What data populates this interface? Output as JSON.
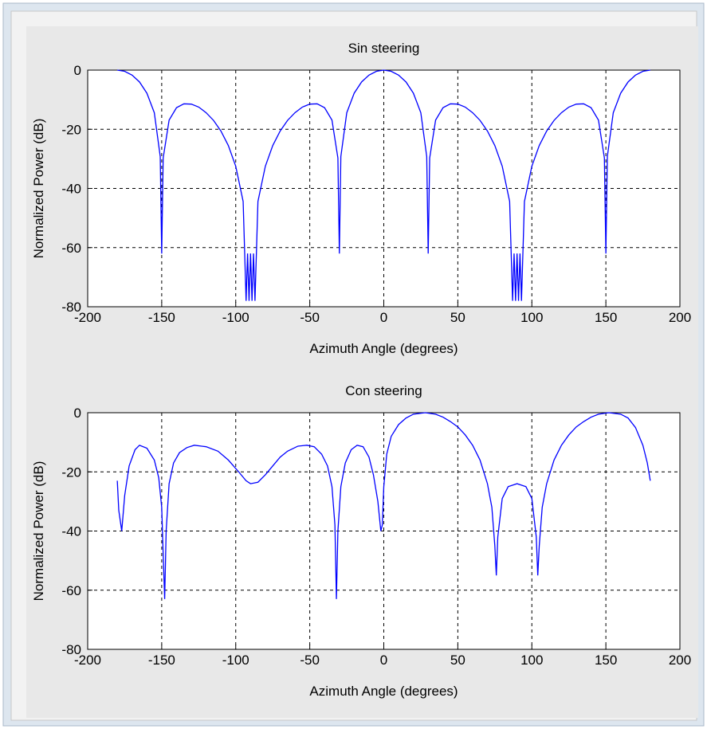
{
  "chart_data": [
    {
      "type": "line",
      "title": "Sin steering",
      "xlabel": "Azimuth Angle (degrees)",
      "ylabel": "Normalized Power (dB)",
      "xlim": [
        -200,
        200
      ],
      "xticks": [
        -200,
        -150,
        -100,
        -50,
        0,
        50,
        100,
        150,
        200
      ],
      "ylim": [
        -80,
        0
      ],
      "yticks": [
        -80,
        -60,
        -40,
        -20,
        0
      ],
      "grid": true,
      "x": [
        -180,
        -175,
        -170,
        -165,
        -160,
        -155,
        -151,
        -150,
        -149,
        -145,
        -140,
        -135,
        -130,
        -125,
        -120,
        -115,
        -110,
        -105,
        -100,
        -95,
        -93,
        -92,
        -91,
        -90,
        -89,
        -88,
        -87,
        -85,
        -80,
        -75,
        -70,
        -65,
        -60,
        -55,
        -50,
        -45,
        -40,
        -35,
        -31,
        -30,
        -29,
        -25,
        -20,
        -15,
        -10,
        -5,
        0,
        5,
        10,
        15,
        20,
        25,
        29,
        30,
        31,
        35,
        40,
        45,
        50,
        55,
        60,
        65,
        70,
        75,
        80,
        85,
        87,
        88,
        89,
        90,
        91,
        92,
        93,
        95,
        100,
        105,
        110,
        115,
        120,
        125,
        130,
        135,
        140,
        145,
        149,
        150,
        151,
        155,
        160,
        165,
        170,
        175,
        180
      ],
      "series": [
        {
          "color": "#0000ff",
          "values": [
            0,
            -0.4,
            -1.7,
            -4,
            -7.8,
            -14.4,
            -29.2,
            -62,
            -29.7,
            -16.9,
            -12.7,
            -11.4,
            -11.5,
            -12.5,
            -14.4,
            -17,
            -20.6,
            -25.5,
            -32.5,
            -44.4,
            -78,
            -62,
            -78,
            -62,
            -78,
            -62,
            -78,
            -44.4,
            -32.5,
            -25.5,
            -20.6,
            -17,
            -14.4,
            -12.5,
            -11.5,
            -11.4,
            -12.7,
            -16.9,
            -29.7,
            -62,
            -29.2,
            -14.4,
            -7.8,
            -4,
            -1.7,
            -0.4,
            0,
            -0.4,
            -1.7,
            -4,
            -7.8,
            -14.4,
            -29.2,
            -62,
            -29.7,
            -16.9,
            -12.7,
            -11.4,
            -11.5,
            -12.5,
            -14.4,
            -17,
            -20.6,
            -25.5,
            -32.5,
            -44.4,
            -78,
            -62,
            -78,
            -62,
            -78,
            -62,
            -78,
            -44.4,
            -32.5,
            -25.5,
            -20.6,
            -17,
            -14.4,
            -12.5,
            -11.5,
            -11.4,
            -12.7,
            -16.9,
            -29.7,
            -62,
            -29.2,
            -14.4,
            -7.8,
            -4,
            -1.7,
            -0.4,
            0
          ]
        }
      ]
    },
    {
      "type": "line",
      "title": "Con steering",
      "xlabel": "Azimuth Angle (degrees)",
      "ylabel": "Normalized Power (dB)",
      "xlim": [
        -200,
        200
      ],
      "xticks": [
        -200,
        -150,
        -100,
        -50,
        0,
        50,
        100,
        150,
        200
      ],
      "ylim": [
        -80,
        0
      ],
      "yticks": [
        -80,
        -60,
        -40,
        -20,
        0
      ],
      "grid": true,
      "x": [
        -180,
        -179,
        -177,
        -175,
        -172,
        -168,
        -165,
        -160,
        -155,
        -152,
        -150,
        -149,
        -148,
        -147,
        -145,
        -142,
        -138,
        -133,
        -128,
        -120,
        -112,
        -105,
        -98,
        -93,
        -90,
        -85,
        -80,
        -75,
        -70,
        -65,
        -58,
        -52,
        -47,
        -42,
        -38,
        -35,
        -33,
        -32,
        -31,
        -29,
        -26,
        -22,
        -18,
        -14,
        -10,
        -7,
        -4,
        -2,
        -1,
        0,
        2,
        5,
        10,
        15,
        20,
        28,
        35,
        40,
        45,
        50,
        55,
        60,
        65,
        70,
        73,
        75,
        76,
        77,
        80,
        84,
        90,
        96,
        100,
        103,
        104,
        105,
        107,
        110,
        115,
        120,
        125,
        130,
        135,
        140,
        145,
        152,
        160,
        165,
        170,
        175,
        178,
        180
      ],
      "series": [
        {
          "color": "#0000ff",
          "values": [
            -23,
            -33,
            -40,
            -28,
            -18,
            -12.5,
            -11,
            -12,
            -16,
            -22,
            -32,
            -48,
            -63,
            -40,
            -24,
            -17,
            -13.5,
            -11.8,
            -11,
            -11.5,
            -13,
            -16,
            -20,
            -23,
            -24,
            -23.5,
            -21,
            -18,
            -15,
            -13,
            -11.3,
            -11,
            -11.5,
            -14,
            -18,
            -25,
            -38,
            -63,
            -40,
            -25,
            -17,
            -12.5,
            -11,
            -11.5,
            -15,
            -21,
            -30,
            -40,
            -38,
            -25,
            -14,
            -8,
            -4,
            -1.8,
            -0.5,
            0,
            -0.5,
            -1.5,
            -3,
            -4.8,
            -7.5,
            -11,
            -16,
            -24,
            -32,
            -45,
            -55,
            -42,
            -29,
            -25,
            -24,
            -25,
            -29,
            -42,
            -55,
            -45,
            -32,
            -24,
            -16,
            -11,
            -7.5,
            -4.8,
            -3,
            -1.5,
            -0.5,
            0,
            -0.5,
            -1.8,
            -5,
            -11,
            -17,
            -23
          ]
        }
      ]
    }
  ]
}
